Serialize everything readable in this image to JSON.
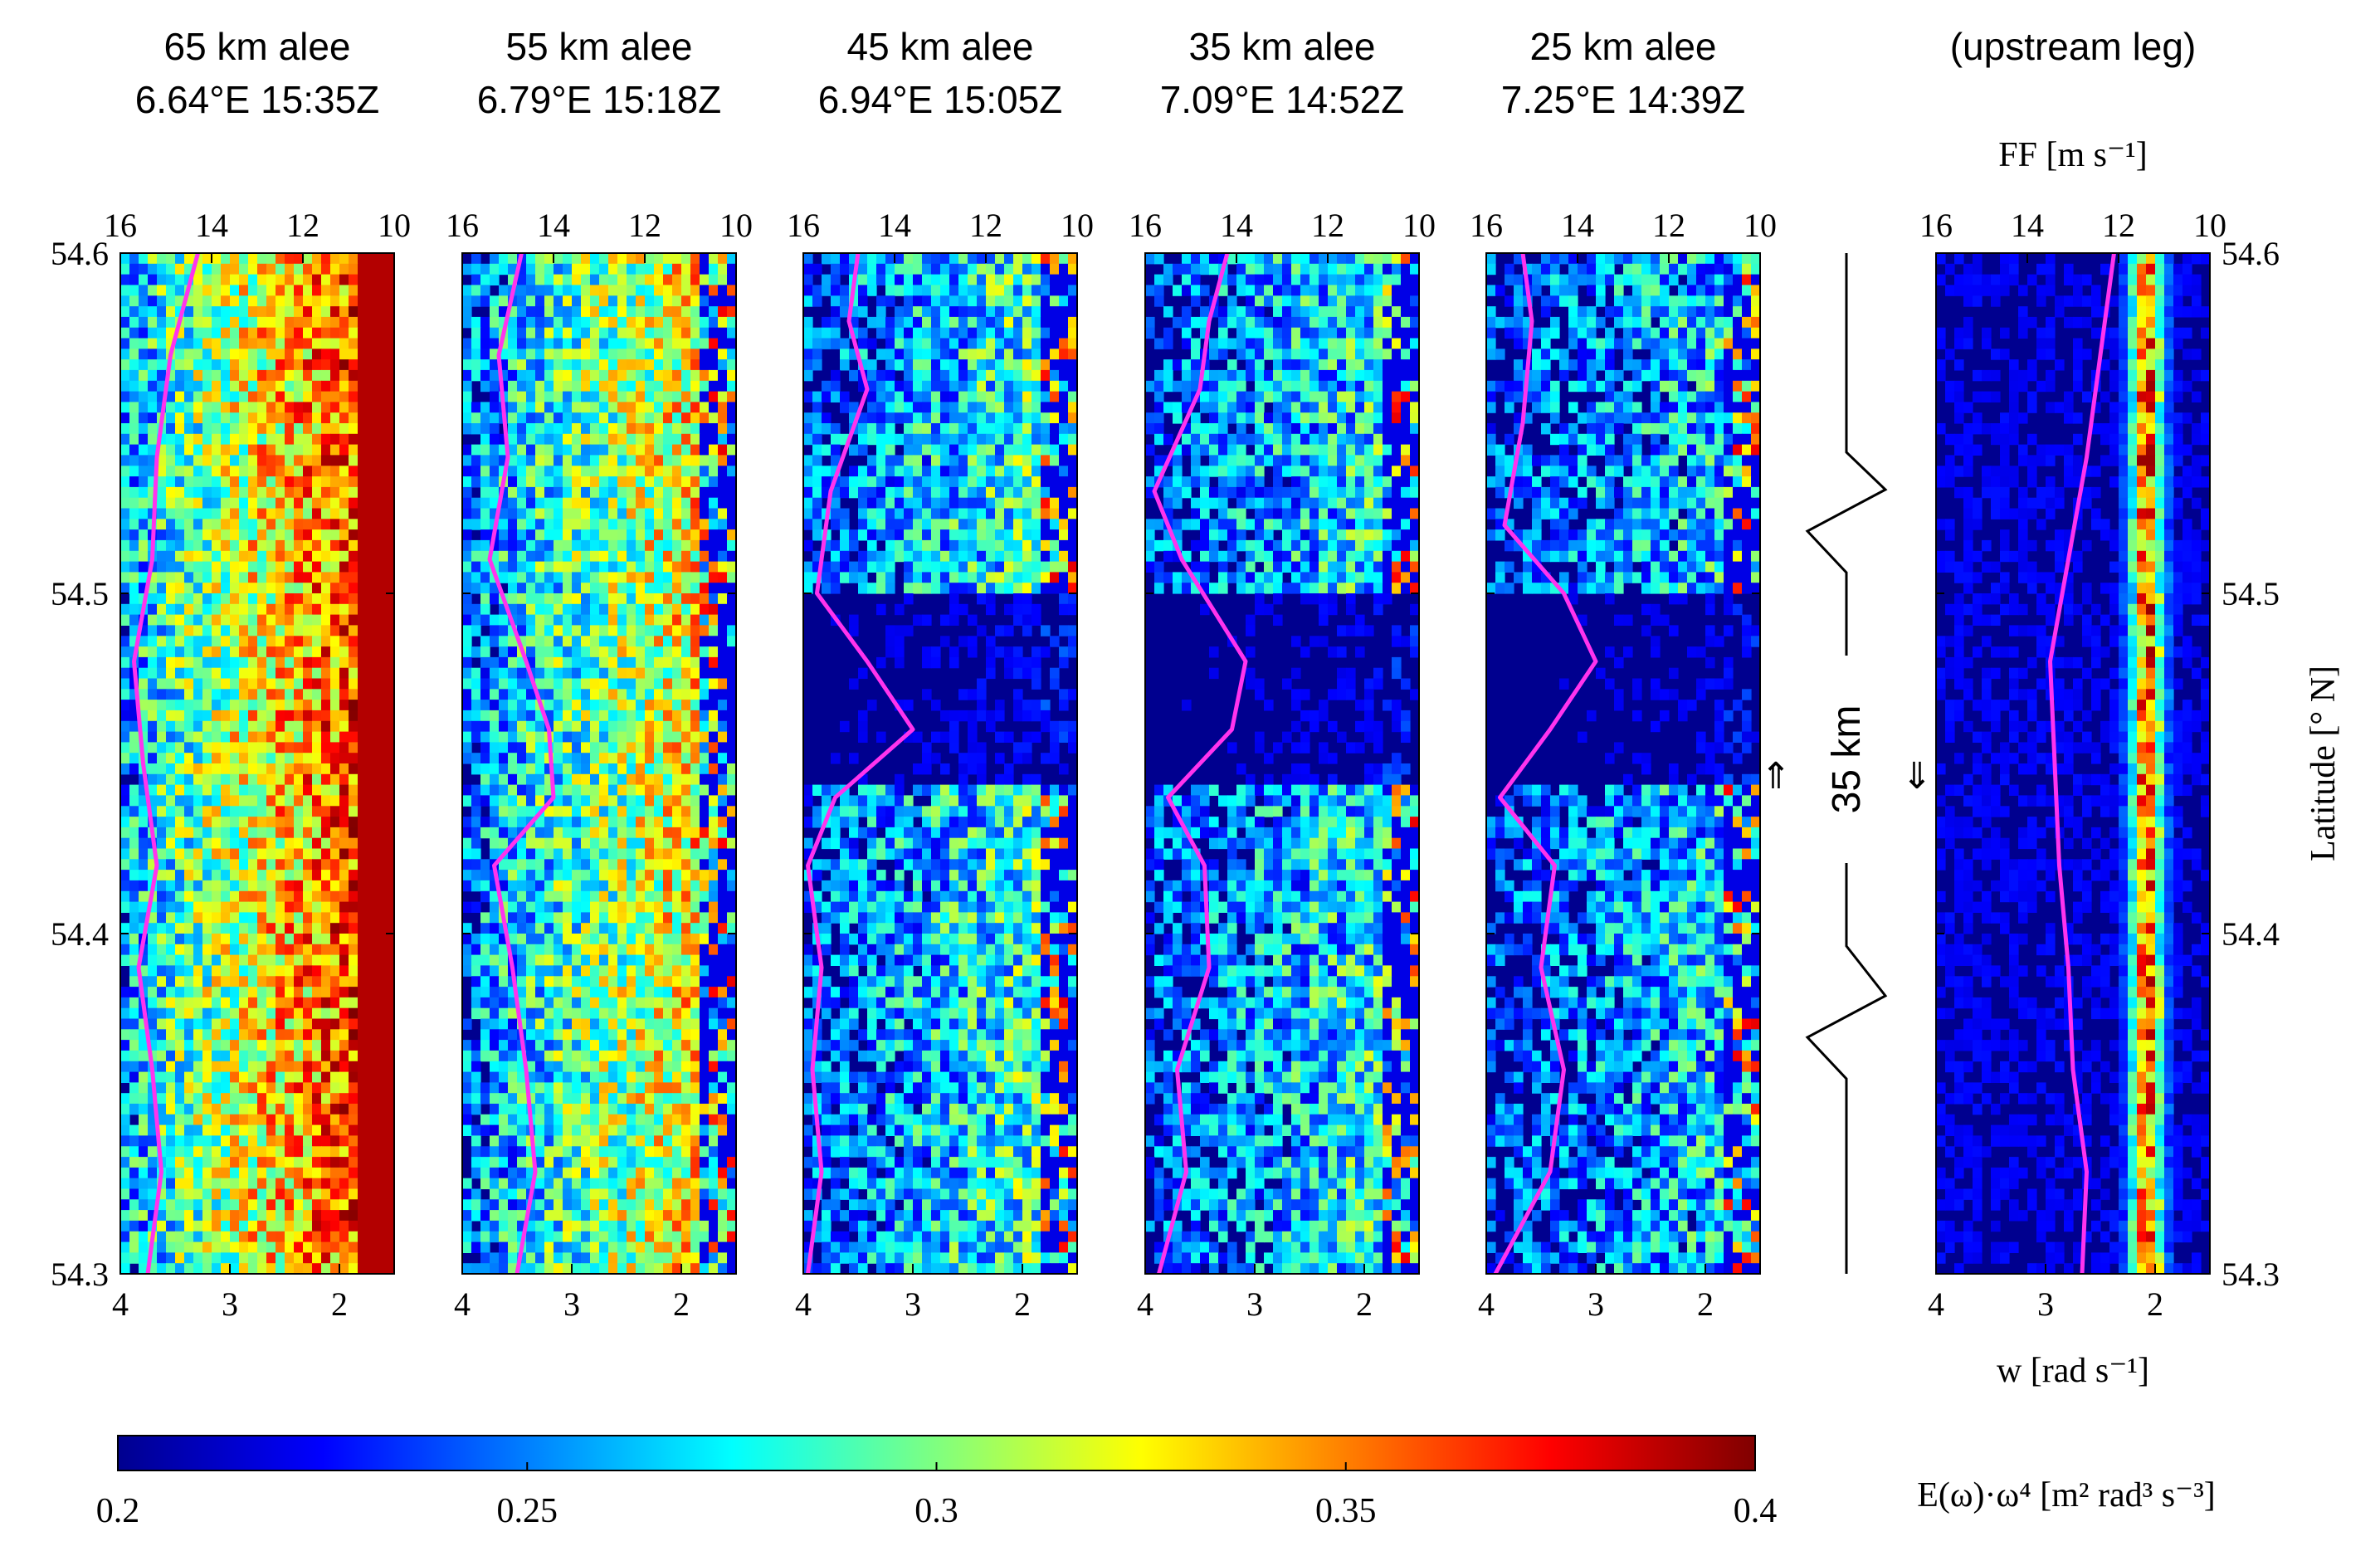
{
  "chart_data": {
    "type": "heatmap",
    "description_units": {
      "color": "E(ω)·ω⁴ [m² rad³ s⁻³]",
      "bottom_x": "w [rad s⁻¹]",
      "top_x": "FF [m s⁻¹]",
      "y": "Latitude [° N]"
    },
    "panels": [
      {
        "title_line1": "65 km alee",
        "title_line2": "6.64°E 15:35Z",
        "intensity": 0.78,
        "ff_profile": [
          [
            54.3,
            15.4
          ],
          [
            54.33,
            15.1
          ],
          [
            54.36,
            15.3
          ],
          [
            54.39,
            15.6
          ],
          [
            54.42,
            15.2
          ],
          [
            54.45,
            15.5
          ],
          [
            54.48,
            15.7
          ],
          [
            54.51,
            15.3
          ],
          [
            54.54,
            15.2
          ],
          [
            54.57,
            14.9
          ],
          [
            54.6,
            14.3
          ]
        ]
      },
      {
        "title_line1": "55 km alee",
        "title_line2": "6.79°E 15:18Z",
        "intensity": 0.62,
        "ff_profile": [
          [
            54.3,
            14.8
          ],
          [
            54.33,
            14.4
          ],
          [
            54.36,
            14.6
          ],
          [
            54.39,
            14.9
          ],
          [
            54.42,
            15.3
          ],
          [
            54.44,
            14.0
          ],
          [
            54.46,
            14.1
          ],
          [
            54.48,
            14.6
          ],
          [
            54.51,
            15.4
          ],
          [
            54.54,
            15.0
          ],
          [
            54.57,
            15.2
          ],
          [
            54.6,
            14.7
          ]
        ]
      },
      {
        "title_line1": "45 km alee",
        "title_line2": "6.94°E 15:05Z",
        "intensity": 0.42,
        "ff_profile": [
          [
            54.3,
            15.9
          ],
          [
            54.33,
            15.6
          ],
          [
            54.36,
            15.8
          ],
          [
            54.39,
            15.6
          ],
          [
            54.42,
            15.9
          ],
          [
            54.44,
            15.3
          ],
          [
            54.46,
            13.6
          ],
          [
            54.48,
            14.6
          ],
          [
            54.5,
            15.7
          ],
          [
            54.53,
            15.4
          ],
          [
            54.56,
            14.6
          ],
          [
            54.58,
            15.0
          ],
          [
            54.6,
            14.8
          ]
        ]
      },
      {
        "title_line1": "35 km alee",
        "title_line2": "7.09°E 14:52Z",
        "intensity": 0.38,
        "ff_profile": [
          [
            54.3,
            15.7
          ],
          [
            54.33,
            15.1
          ],
          [
            54.36,
            15.3
          ],
          [
            54.39,
            14.6
          ],
          [
            54.42,
            14.7
          ],
          [
            54.44,
            15.5
          ],
          [
            54.46,
            14.1
          ],
          [
            54.48,
            13.8
          ],
          [
            54.51,
            15.2
          ],
          [
            54.53,
            15.8
          ],
          [
            54.56,
            14.8
          ],
          [
            54.58,
            14.6
          ],
          [
            54.6,
            14.2
          ]
        ]
      },
      {
        "title_line1": "25 km alee",
        "title_line2": "7.25°E 14:39Z",
        "intensity": 0.33,
        "ff_profile": [
          [
            54.3,
            15.8
          ],
          [
            54.33,
            14.6
          ],
          [
            54.36,
            14.3
          ],
          [
            54.39,
            14.8
          ],
          [
            54.42,
            14.5
          ],
          [
            54.44,
            15.7
          ],
          [
            54.46,
            14.6
          ],
          [
            54.48,
            13.6
          ],
          [
            54.5,
            14.3
          ],
          [
            54.52,
            15.6
          ],
          [
            54.55,
            15.2
          ],
          [
            54.58,
            15.0
          ],
          [
            54.6,
            15.2
          ]
        ]
      },
      {
        "title_line1": "(upstream leg)",
        "title_line2": "",
        "intensity": 0.15,
        "ff_profile": [
          [
            54.3,
            12.8
          ],
          [
            54.33,
            12.7
          ],
          [
            54.36,
            13.0
          ],
          [
            54.39,
            13.1
          ],
          [
            54.42,
            13.3
          ],
          [
            54.45,
            13.4
          ],
          [
            54.48,
            13.5
          ],
          [
            54.51,
            13.1
          ],
          [
            54.54,
            12.7
          ],
          [
            54.57,
            12.4
          ],
          [
            54.6,
            12.1
          ]
        ]
      }
    ],
    "xlim_w": [
      4,
      1.5
    ],
    "xticks_w": [
      4,
      3,
      2
    ],
    "xticklabels_w": [
      "4",
      "3",
      "2"
    ],
    "xlim_ff": [
      16,
      10
    ],
    "xticks_ff": [
      16,
      14,
      12,
      10
    ],
    "xticklabels_ff": [
      "16",
      "14",
      "12",
      "10"
    ],
    "ylim": [
      54.3,
      54.6
    ],
    "yticks": [
      54.3,
      54.4,
      54.5,
      54.6
    ],
    "yticklabels": [
      "54.3",
      "54.4",
      "54.5",
      "54.6"
    ],
    "colorbar": {
      "range": [
        0.2,
        0.4
      ],
      "ticks": [
        0.2,
        0.25,
        0.3,
        0.35,
        0.4
      ],
      "ticklabels": [
        "0.2",
        "0.25",
        "0.3",
        "0.35",
        "0.4"
      ],
      "label": "E(ω)·ω⁴ [m² rad³ s⁻³]",
      "colormap": "jet"
    },
    "labels": {
      "top_axis": "FF [m s⁻¹]",
      "bottom_axis": "w [rad s⁻¹]",
      "right_axis": "Latitude [° N]",
      "gap_label": "35 km",
      "gap_arrow_left": "⇑",
      "gap_arrow_right": "⇓"
    },
    "colors": {
      "ff_line": "#ff33ee",
      "axis": "#000000"
    }
  }
}
